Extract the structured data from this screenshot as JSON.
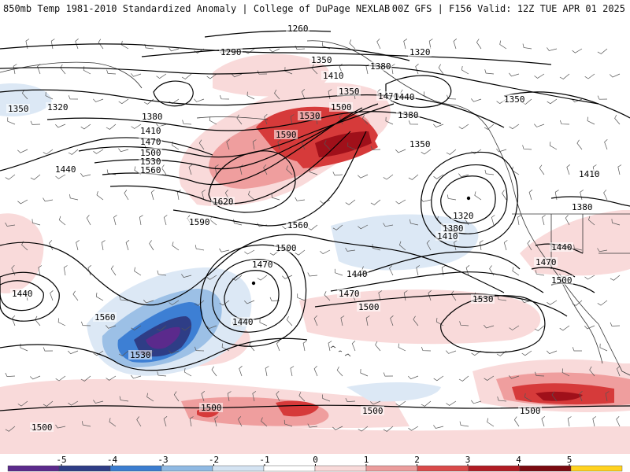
{
  "header": {
    "title_left": "850mb Temp 1981-2010 Standardized Anomaly | College of DuPage NEXLAB",
    "title_right": "00Z GFS | F156 Valid: 12Z TUE APR 01 2025"
  },
  "contours": {
    "labels": [
      "1260",
      "1290",
      "1320",
      "1350",
      "1380",
      "1410",
      "1440",
      "1470",
      "1500",
      "1530",
      "1560",
      "1590",
      "1620"
    ],
    "placed": [
      {
        "text": "1260"
      },
      {
        "text": "1290"
      },
      {
        "text": "1320"
      },
      {
        "text": "1350"
      },
      {
        "text": "1410"
      },
      {
        "text": "1380"
      },
      {
        "text": "1350"
      },
      {
        "text": "1320"
      },
      {
        "text": "1380"
      },
      {
        "text": "1410"
      },
      {
        "text": "1470"
      },
      {
        "text": "1500"
      },
      {
        "text": "1530"
      },
      {
        "text": "1560"
      },
      {
        "text": "1440"
      },
      {
        "text": "1590"
      },
      {
        "text": "1620"
      },
      {
        "text": "1590"
      },
      {
        "text": "1560"
      },
      {
        "text": "1470"
      },
      {
        "text": "1440"
      },
      {
        "text": "1500"
      },
      {
        "text": "1530"
      },
      {
        "text": "1440"
      },
      {
        "text": "1410"
      },
      {
        "text": "1380"
      },
      {
        "text": "1350"
      },
      {
        "text": "1320"
      },
      {
        "text": "1380"
      },
      {
        "text": "1410"
      },
      {
        "text": "1350"
      },
      {
        "text": "1350"
      },
      {
        "text": "1380"
      },
      {
        "text": "1440"
      },
      {
        "text": "1470"
      },
      {
        "text": "1500"
      },
      {
        "text": "1470"
      },
      {
        "text": "1500"
      },
      {
        "text": "1440"
      },
      {
        "text": "1440"
      },
      {
        "text": "1470"
      },
      {
        "text": "1500"
      },
      {
        "text": "1530"
      },
      {
        "text": "1560"
      },
      {
        "text": "1530"
      },
      {
        "text": "1500"
      },
      {
        "text": "1500"
      },
      {
        "text": "1500"
      },
      {
        "text": "1500"
      }
    ]
  },
  "colorbar": {
    "ticks": [
      "-5",
      "-4",
      "-3",
      "-2",
      "-1",
      "0",
      "1",
      "2",
      "3",
      "4",
      "5"
    ],
    "colors": [
      "#5b2a8c",
      "#2e3d86",
      "#3b7dd0",
      "#8fb9e3",
      "#d4e3f2",
      "#ffffff",
      "#f8d9d9",
      "#eb9c9c",
      "#d94a4a",
      "#b01c24",
      "#7a0a10",
      "#ffd21f"
    ]
  },
  "anomaly_colors": {
    "warm_light": "#f9dada",
    "warm_mid": "#ef9e9e",
    "warm_strong": "#d63a3a",
    "warm_extreme": "#a0101a",
    "cold_light": "#dce8f5",
    "cold_mid": "#9cc0e6",
    "cold_strong": "#3d7fd4",
    "cold_deep": "#2e3d86",
    "cold_extreme": "#5b2a8c"
  }
}
